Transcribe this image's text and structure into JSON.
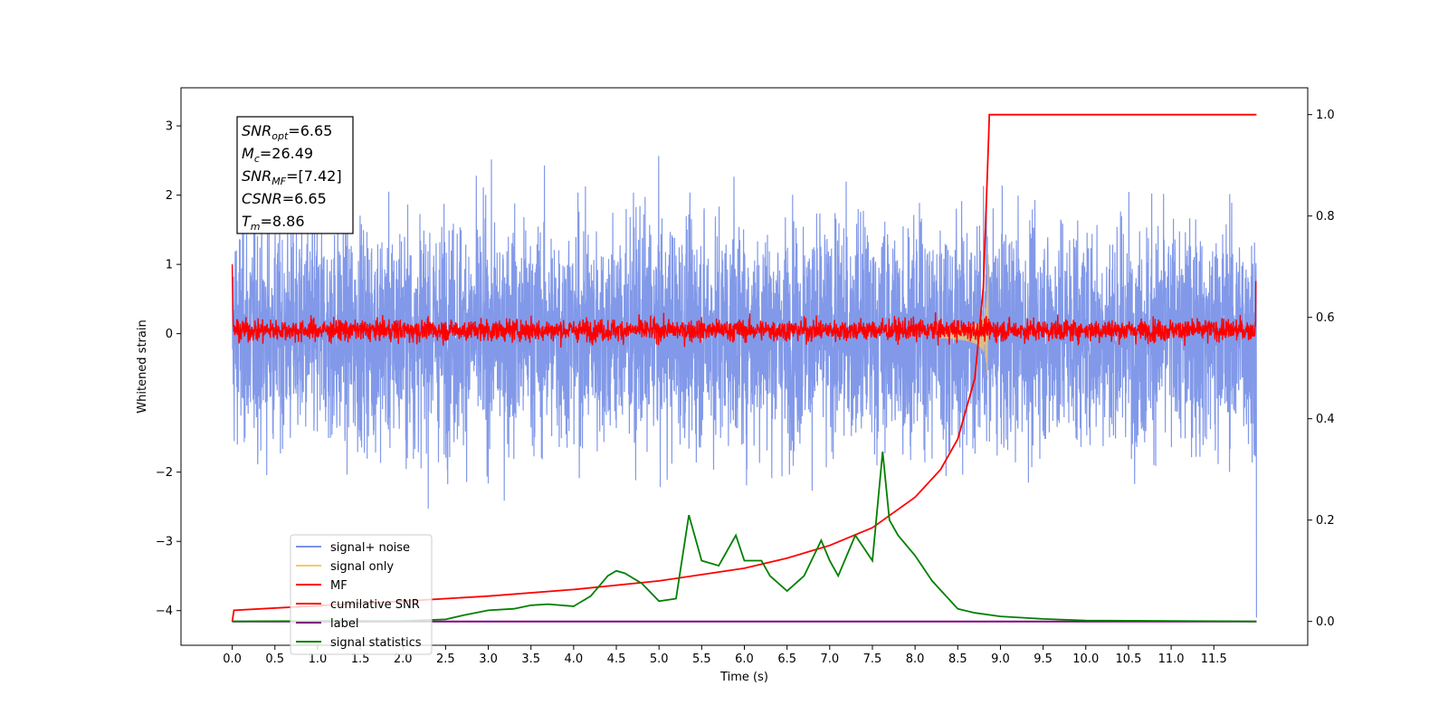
{
  "chart_data": {
    "type": "line",
    "xlabel": "Time (s)",
    "ylabel": "Whitened strain",
    "xlim": [
      -0.6,
      12.6
    ],
    "ylim": [
      -4.5,
      3.55
    ],
    "y2lim": [
      -0.047,
      1.053
    ],
    "x_ticks": [
      "0.0",
      "0.5",
      "1.0",
      "1.5",
      "2.0",
      "2.5",
      "3.0",
      "3.5",
      "4.0",
      "4.5",
      "5.0",
      "5.5",
      "6.0",
      "6.5",
      "7.0",
      "7.5",
      "8.0",
      "8.5",
      "9.0",
      "9.5",
      "10.0",
      "10.5",
      "11.0",
      "11.5"
    ],
    "y_ticks": [
      "3",
      "2",
      "1",
      "0",
      "−2",
      "−3",
      "−4"
    ],
    "y2_ticks": [
      "1.0",
      "0.8",
      "0.6",
      "0.4",
      "0.2",
      "0.0"
    ],
    "annotation": {
      "lines": [
        {
          "sym": "SNR",
          "sub": "opt",
          "val": "=6.65"
        },
        {
          "sym": "M",
          "sub": "c",
          "val": "=26.49"
        },
        {
          "sym": "SNR",
          "sub": "MF",
          "val": "=[7.42]"
        },
        {
          "sym": "CSNR",
          "sub": "",
          "val": "=6.65"
        },
        {
          "sym": "T",
          "sub": "m",
          "val": "=8.86"
        }
      ]
    },
    "legend": {
      "placement": "lower left",
      "entries": [
        {
          "label": "signal+ noise",
          "color": "#7b93e8"
        },
        {
          "label": "signal only",
          "color": "#f5c96a"
        },
        {
          "label": "MF",
          "color": "#ff0000"
        },
        {
          "label": "cumilative SNR",
          "color": "#ff0000"
        },
        {
          "label": "label",
          "color": "#800080"
        },
        {
          "label": "signal statistics",
          "color": "#008000"
        }
      ]
    },
    "series": [
      {
        "name": "signal+ noise",
        "axis": "left",
        "color": "#7b93e8",
        "x_range": [
          0,
          12
        ],
        "approx_std": 0.8,
        "approx_range": [
          -2.9,
          3.25
        ]
      },
      {
        "name": "signal only",
        "axis": "left",
        "color": "#f5c96a",
        "peak_time": 8.86,
        "approx_amplitude": 0.5
      },
      {
        "name": "MF",
        "axis": "left",
        "color": "#ff0000",
        "x_range": [
          0,
          12
        ],
        "approx_range": [
          -0.2,
          0.45
        ]
      },
      {
        "name": "cumilative SNR",
        "axis": "right",
        "color": "#ff0000",
        "x": [
          0,
          0.02,
          1,
          2,
          3,
          4,
          5,
          6,
          6.5,
          7,
          7.5,
          8,
          8.3,
          8.5,
          8.7,
          8.8,
          8.86,
          8.87,
          12
        ],
        "values": [
          0.0,
          0.022,
          0.031,
          0.04,
          0.05,
          0.063,
          0.08,
          0.105,
          0.125,
          0.15,
          0.185,
          0.245,
          0.3,
          0.36,
          0.48,
          0.66,
          0.95,
          1.0,
          1.0
        ]
      },
      {
        "name": "label",
        "axis": "right",
        "color": "#800080",
        "x": [
          0,
          12
        ],
        "values": [
          0.0,
          0.0
        ]
      },
      {
        "name": "signal statistics",
        "axis": "right",
        "color": "#008000",
        "x": [
          0,
          1,
          2,
          2.5,
          2.7,
          3.0,
          3.3,
          3.5,
          3.7,
          4.0,
          4.2,
          4.4,
          4.5,
          4.6,
          4.8,
          5.0,
          5.2,
          5.35,
          5.5,
          5.7,
          5.9,
          6.0,
          6.2,
          6.3,
          6.5,
          6.7,
          6.9,
          7.0,
          7.1,
          7.3,
          7.5,
          7.62,
          7.7,
          7.8,
          8.0,
          8.2,
          8.5,
          8.7,
          9.0,
          9.5,
          10,
          12
        ],
        "values": [
          0.0,
          0.001,
          0.001,
          0.004,
          0.012,
          0.022,
          0.025,
          0.032,
          0.034,
          0.03,
          0.05,
          0.09,
          0.1,
          0.095,
          0.075,
          0.04,
          0.045,
          0.21,
          0.12,
          0.11,
          0.17,
          0.12,
          0.12,
          0.09,
          0.06,
          0.09,
          0.16,
          0.12,
          0.09,
          0.17,
          0.12,
          0.335,
          0.2,
          0.17,
          0.13,
          0.08,
          0.025,
          0.017,
          0.01,
          0.005,
          0.002,
          0.0
        ]
      }
    ]
  }
}
